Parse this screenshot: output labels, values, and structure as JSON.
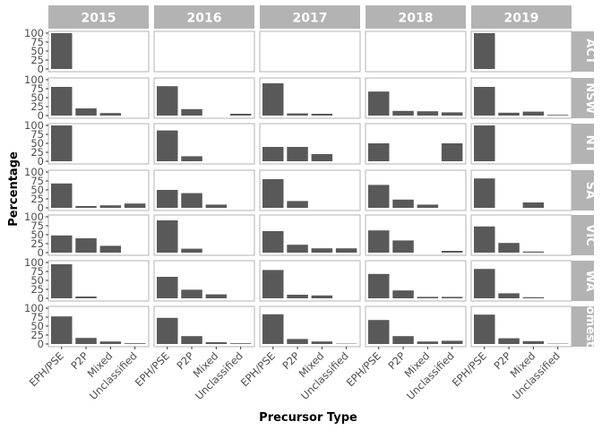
{
  "chart_data": {
    "type": "bar",
    "facet": "grid",
    "xlabel": "Precursor Type",
    "ylabel": "Percentage",
    "ylim": [
      0,
      100
    ],
    "yticks": [
      0,
      25,
      50,
      75,
      100
    ],
    "grid": false,
    "columns": [
      "2015",
      "2016",
      "2017",
      "2018",
      "2019"
    ],
    "rows": [
      "ACT",
      "NSW",
      "NT",
      "SA",
      "VIC",
      "WA",
      "Domestic"
    ],
    "row_labels_visible": [
      "ACT",
      "NSW",
      "NT",
      "SA",
      "VIC",
      "WA",
      "omest"
    ],
    "categories": [
      "EPH/PSE",
      "P2P",
      "Mixed",
      "Unclassified"
    ],
    "values": {
      "ACT": {
        "2015": [
          100,
          0,
          0,
          0
        ],
        "2016": [
          0,
          0,
          0,
          0
        ],
        "2017": [
          0,
          0,
          0,
          0
        ],
        "2018": [
          0,
          0,
          0,
          0
        ],
        "2019": [
          100,
          0,
          0,
          0
        ]
      },
      "NSW": {
        "2015": [
          80,
          20,
          7,
          0
        ],
        "2016": [
          82,
          18,
          0,
          5
        ],
        "2017": [
          90,
          6,
          5,
          0
        ],
        "2018": [
          67,
          13,
          12,
          9
        ],
        "2019": [
          80,
          8,
          11,
          2
        ]
      },
      "NT": {
        "2015": [
          100,
          0,
          0,
          0
        ],
        "2016": [
          86,
          14,
          0,
          0
        ],
        "2017": [
          40,
          40,
          20,
          0
        ],
        "2018": [
          50,
          0,
          0,
          50
        ],
        "2019": [
          100,
          0,
          0,
          0
        ]
      },
      "SA": {
        "2015": [
          68,
          5,
          7,
          12
        ],
        "2016": [
          50,
          41,
          9,
          0
        ],
        "2017": [
          80,
          19,
          0,
          0
        ],
        "2018": [
          64,
          23,
          9,
          0
        ],
        "2019": [
          82,
          0,
          15,
          0
        ]
      },
      "VIC": {
        "2015": [
          48,
          40,
          19,
          0
        ],
        "2016": [
          90,
          11,
          0,
          0
        ],
        "2017": [
          60,
          22,
          12,
          12
        ],
        "2018": [
          62,
          34,
          0,
          5
        ],
        "2019": [
          73,
          27,
          3,
          0
        ]
      },
      "WA": {
        "2015": [
          95,
          5,
          0,
          0
        ],
        "2016": [
          60,
          24,
          11,
          0
        ],
        "2017": [
          79,
          10,
          8,
          0
        ],
        "2018": [
          68,
          22,
          4,
          4
        ],
        "2019": [
          82,
          14,
          3,
          0
        ]
      },
      "Domestic": {
        "2015": [
          77,
          17,
          7,
          2
        ],
        "2016": [
          73,
          22,
          5,
          2
        ],
        "2017": [
          83,
          14,
          7,
          1
        ],
        "2018": [
          67,
          22,
          7,
          9
        ],
        "2019": [
          82,
          16,
          8,
          1
        ]
      }
    }
  },
  "colors": {
    "bar": "#595959",
    "strip_bg": "#b3b3b3",
    "strip_text": "#ffffff",
    "panel_border": "#b3b3b3",
    "panel_bg": "#ffffff",
    "tick_text": "#4d4d4d",
    "tick_line": "#333333"
  }
}
